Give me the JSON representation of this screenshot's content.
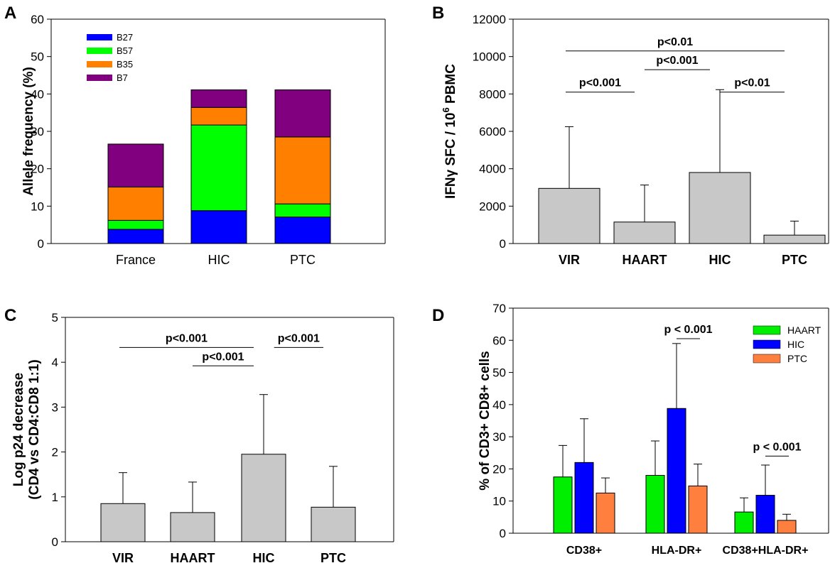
{
  "chart_data": [
    {
      "panel": "A",
      "type": "bar",
      "stacked": true,
      "ylabel": "Allele frequency (%)",
      "ylim": [
        0,
        60
      ],
      "yticks": [
        0,
        10,
        20,
        30,
        40,
        50,
        60
      ],
      "categories": [
        "France",
        "HIC",
        "PTC"
      ],
      "series": [
        {
          "name": "B27",
          "color": "#0000ff",
          "values": [
            3.8,
            8.8,
            7.1
          ]
        },
        {
          "name": "B57",
          "color": "#00ff00",
          "values": [
            2.4,
            22.9,
            3.5
          ]
        },
        {
          "name": "B35",
          "color": "#ff8000",
          "values": [
            8.9,
            4.7,
            17.9
          ]
        },
        {
          "name": "B7",
          "color": "#800080",
          "values": [
            11.5,
            4.7,
            12.6
          ]
        }
      ],
      "legend_position": "top-left"
    },
    {
      "panel": "B",
      "type": "bar",
      "ylabel": "IFNγ SFC / 10",
      "ylabel_sup": "6",
      "ylabel_tail": " PBMC",
      "ylim": [
        0,
        12000
      ],
      "yticks": [
        0,
        2000,
        4000,
        6000,
        8000,
        10000,
        12000
      ],
      "categories": [
        "VIR",
        "HAART",
        "HIC",
        "PTC"
      ],
      "values": [
        2950,
        1150,
        3800,
        450
      ],
      "errors": [
        3300,
        1980,
        4430,
        750
      ],
      "bar_color": "#c8c8c8",
      "annotations": [
        {
          "text": "p<0.01",
          "from": 0,
          "to": 3,
          "y": 10300
        },
        {
          "text": "p<0.001",
          "from": 0,
          "to": 1,
          "y": 8100
        },
        {
          "text": "p<0.001",
          "from": 1,
          "to": 2,
          "y": 9300
        },
        {
          "text": "p<0.01",
          "from": 2,
          "to": 3,
          "y": 8100
        }
      ]
    },
    {
      "panel": "C",
      "type": "bar",
      "ylabel": "Log p24 decrease",
      "ylabel2": "(CD4 vs CD4:CD8 1:1)",
      "ylim": [
        0,
        5
      ],
      "yticks": [
        0,
        1,
        2,
        3,
        4,
        5
      ],
      "categories": [
        "VIR",
        "HAART",
        "HIC",
        "PTC"
      ],
      "values": [
        0.85,
        0.65,
        1.95,
        0.77
      ],
      "errors": [
        0.69,
        0.68,
        1.33,
        0.91
      ],
      "bar_color": "#c8c8c8",
      "annotations": [
        {
          "text": "p<0.001",
          "from": 0,
          "to": 2,
          "y": 4.33
        },
        {
          "text": "p<0.001",
          "from": 1,
          "to": 2,
          "y": 3.92
        },
        {
          "text": "p<0.001",
          "from": 2.15,
          "to": 3,
          "y": 4.33
        }
      ]
    },
    {
      "panel": "D",
      "type": "bar",
      "grouped": true,
      "ylabel": "% of CD3+ CD8+ cells",
      "ylim": [
        0,
        70
      ],
      "yticks": [
        0,
        10,
        20,
        30,
        40,
        50,
        60,
        70
      ],
      "categories": [
        "CD38+",
        "HLA-DR+",
        "CD38+HLA-DR+"
      ],
      "series": [
        {
          "name": "HAART",
          "color": "#00ee00",
          "values": [
            17.5,
            18,
            6.6
          ],
          "errors": [
            9.8,
            10.7,
            4.4
          ]
        },
        {
          "name": "HIC",
          "color": "#0000ff",
          "values": [
            22,
            38.8,
            11.8
          ],
          "errors": [
            13.6,
            20.2,
            9.4
          ]
        },
        {
          "name": "PTC",
          "color": "#ff7f3f",
          "values": [
            12.5,
            14.7,
            4
          ],
          "errors": [
            4.7,
            6.8,
            1.9
          ]
        }
      ],
      "legend_position": "top-right",
      "annotations": [
        {
          "text": "p < 0.001",
          "group": 1,
          "from": 1,
          "to": 2,
          "y": 60.5
        },
        {
          "text": "p < 0.001",
          "group": 2,
          "from": 1,
          "to": 2,
          "y": 24
        }
      ]
    }
  ]
}
